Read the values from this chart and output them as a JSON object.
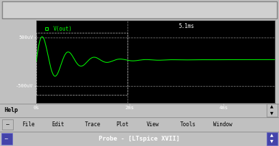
{
  "bg_color": "#000000",
  "plot_bg": "#000000",
  "frame_bg": "#c0c0c0",
  "menu_bg": "#c0c0c0",
  "titlebar_bg": "#0000bb",
  "wave_color": "#00ff00",
  "text_color": "#ffffff",
  "label_color": "#00ff00",
  "dashed_color": "#aaaaaa",
  "x_ticks_labels": [
    "0s",
    "2ms",
    "4ms"
  ],
  "x_tick_pos": [
    0.0,
    0.002,
    0.004
  ],
  "y_tick_labels": [
    "-500uV",
    "500uV"
  ],
  "y_tick_vals": [
    -0.0005,
    0.0005
  ],
  "x_label_top": "5.1ms",
  "signal_label": "V(out)",
  "menu_items": [
    "File",
    "Edit",
    "Trace",
    "Plot",
    "View",
    "Tools",
    "Window"
  ],
  "status_text": "Probe - [LTspice XVII]",
  "help_text": "Help",
  "ylim": [
    -0.00085,
    0.00085
  ],
  "xlim": [
    0.0,
    0.0051
  ],
  "decay_freq": 1800,
  "decay_tau": 0.00055,
  "amplitude": 0.00065,
  "fig_width": 4.07,
  "fig_height": 2.14,
  "dpi": 100
}
